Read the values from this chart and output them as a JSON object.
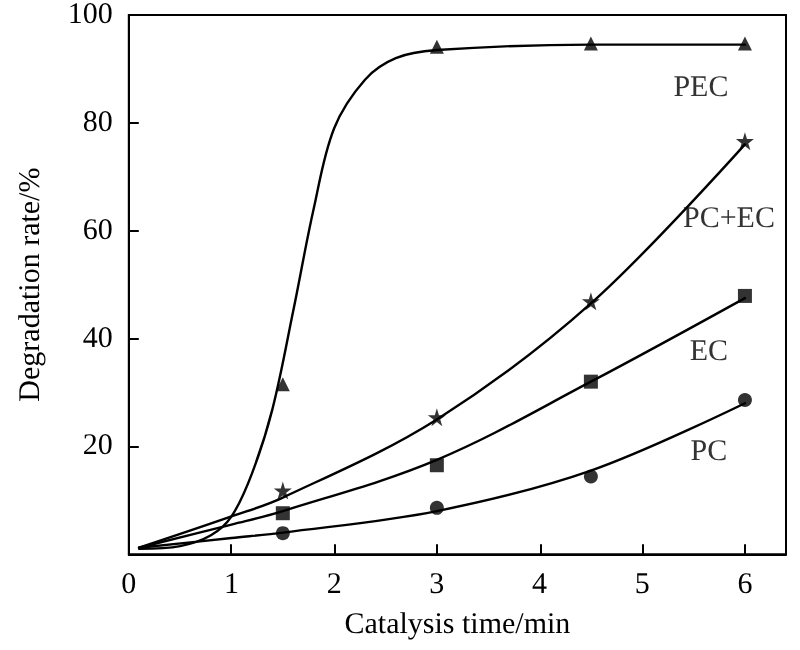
{
  "chart_data": {
    "type": "line",
    "xlabel": "Catalysis time/min",
    "ylabel": "Degradation rate/%",
    "xlim": [
      0,
      6.4
    ],
    "xticks": [
      0,
      1,
      2,
      3,
      4,
      5,
      6
    ],
    "ylim": [
      0,
      100
    ],
    "yticks": [
      {
        "value": 0,
        "label": null
      },
      20,
      40,
      60,
      80,
      100
    ],
    "grid": false,
    "legend": false,
    "line_style": "solid",
    "series": [
      {
        "type": "line",
        "marker": "none",
        "color": "#000000",
        "x": [
          0.1,
          0.5,
          0.8,
          1.0,
          1.2,
          1.4,
          1.6,
          1.8,
          2.0,
          2.3,
          2.6,
          3,
          4.5,
          6
        ],
        "values": [
          1,
          1.5,
          3.5,
          7,
          15,
          27,
          45,
          64,
          79,
          88,
          92,
          93.5,
          94.5,
          94.5
        ]
      },
      {
        "type": "line",
        "marker": "none",
        "color": "#000000",
        "x": [
          0.1,
          1,
          1.5,
          3,
          4.5,
          6
        ],
        "values": [
          1.2,
          7,
          10.5,
          25,
          46.5,
          76
        ]
      },
      {
        "type": "line",
        "marker": "none",
        "color": "#000000",
        "x": [
          0.1,
          1,
          1.5,
          3,
          4.5,
          6
        ],
        "values": [
          1.2,
          5.5,
          8,
          17.5,
          32,
          47.5
        ]
      },
      {
        "type": "line",
        "marker": "none",
        "color": "#000000",
        "x": [
          0.1,
          1,
          1.5,
          3,
          4.5,
          6
        ],
        "values": [
          1.2,
          3,
          4,
          8,
          15.5,
          28
        ]
      },
      {
        "type": "scatter",
        "name": "PEC",
        "marker": "triangle",
        "color": "#000000",
        "x": [
          1.5,
          3,
          4.5,
          6
        ],
        "values": [
          31.5,
          94.1,
          94.7,
          94.7
        ]
      },
      {
        "type": "scatter",
        "name": "PC+EC",
        "marker": "star",
        "color": "#000000",
        "x": [
          1.5,
          3,
          4.5,
          6
        ],
        "values": [
          11.8,
          25.4,
          46.9,
          76.6
        ]
      },
      {
        "type": "scatter",
        "name": "EC",
        "marker": "square",
        "color": "#000000",
        "x": [
          1.5,
          3,
          4.5,
          6
        ],
        "values": [
          7.6,
          16.5,
          32.0,
          47.9
        ]
      },
      {
        "type": "scatter",
        "name": "PC",
        "marker": "circle",
        "color": "#000000",
        "x": [
          1.5,
          3,
          4.5,
          6
        ],
        "values": [
          3.9,
          8.6,
          14.4,
          28.6
        ]
      }
    ]
  }
}
